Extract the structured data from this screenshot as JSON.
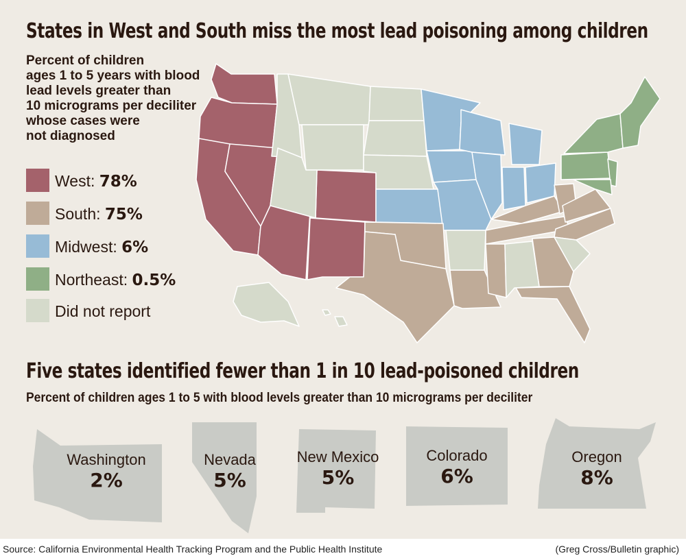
{
  "title": "States in West and South miss the most lead poisoning among children",
  "subtitle_lines": [
    "Percent of children",
    "ages 1 to 5 years with blood",
    "lead levels greater than",
    "10 micrograms per deciliter",
    "whose cases were",
    "not diagnosed"
  ],
  "colors": {
    "west": "#a4626b",
    "south": "#bfab98",
    "midwest": "#97bbd6",
    "northeast": "#8faf86",
    "none": "#d5dacb",
    "small_state": "#c9cbc6"
  },
  "legend": [
    {
      "key": "west",
      "label": "West: ",
      "value": "78%"
    },
    {
      "key": "south",
      "label": "South: ",
      "value": "75%"
    },
    {
      "key": "midwest",
      "label": "Midwest: ",
      "value": "6%"
    },
    {
      "key": "northeast",
      "label": "Northeast: ",
      "value": "0.5%"
    },
    {
      "key": "none",
      "label": "Did not report",
      "value": ""
    }
  ],
  "title2": "Five states identified fewer than 1 in 10 lead-poisoned children",
  "subtitle2": "Percent of children ages 1 to 5 with blood levels greater than 10 micrograms per deciliter",
  "states": [
    {
      "name": "Washington",
      "value": "2%"
    },
    {
      "name": "Nevada",
      "value": "5%"
    },
    {
      "name": "New Mexico",
      "value": "5%"
    },
    {
      "name": "Colorado",
      "value": "6%"
    },
    {
      "name": "Oregon",
      "value": "8%"
    }
  ],
  "source": "Source: California Environmental Health Tracking Program and the Public Health Institute",
  "credit": "(Greg Cross/Bulletin graphic)"
}
